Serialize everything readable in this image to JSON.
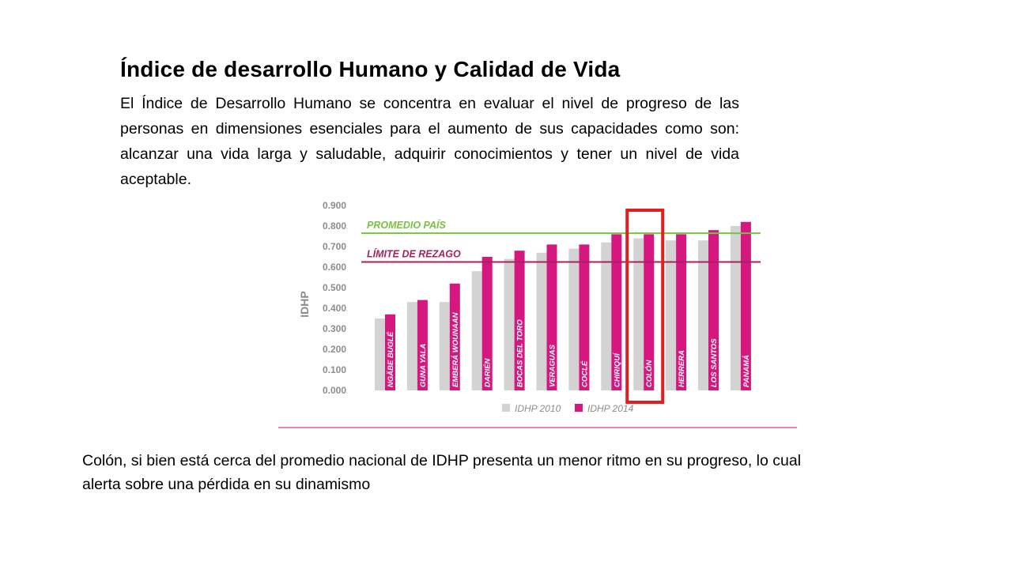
{
  "slide": {
    "title": "Índice de desarrollo Humano y Calidad de Vida",
    "intro": "El Índice de Desarrollo Humano se concentra en evaluar el nivel de progreso de las personas en dimensiones esenciales para el aumento de sus capacidades como son: alcanzar una vida larga y saludable, adquirir conocimientos y tener un nivel de vida aceptable.",
    "conclusion": "Colón, si bien está cerca del promedio nacional de IDHP presenta un menor ritmo en su progreso, lo cual alerta sobre una pérdida en su dinamismo"
  },
  "colors": {
    "idhp_2010": "#d3d3d3",
    "idhp_2014": "#d6177f",
    "promedio_line": "#7ac143",
    "rezago_line": "#a3235d",
    "highlight_box": "#e02020",
    "axis_text": "#8c8c8c"
  },
  "chart_data": {
    "type": "bar",
    "ylabel": "IDHP",
    "ylim": [
      0,
      0.9
    ],
    "yticks": [
      "0.900",
      "0.800",
      "0.700",
      "0.600",
      "0.500",
      "0.400",
      "0.300",
      "0.200",
      "0.100",
      "0.000"
    ],
    "categories": [
      "NGÄBE BUGLÉ",
      "GUNA YALA",
      "EMBERÁ WOUNAAN",
      "DARIÉN",
      "BOCAS DEL TORO",
      "VERAGUAS",
      "COCLÉ",
      "CHIRIQUÍ",
      "COLÓN",
      "HERRERA",
      "LOS SANTOS",
      "PANAMÁ"
    ],
    "series": [
      {
        "name": "IDHP 2010",
        "values": [
          0.35,
          0.43,
          0.43,
          0.58,
          0.64,
          0.67,
          0.69,
          0.72,
          0.74,
          0.73,
          0.73,
          0.8
        ]
      },
      {
        "name": "IDHP 2014",
        "values": [
          0.37,
          0.44,
          0.52,
          0.65,
          0.68,
          0.71,
          0.71,
          0.76,
          0.76,
          0.76,
          0.78,
          0.82
        ]
      }
    ],
    "reference_lines": [
      {
        "label": "PROMEDIO PAÍS",
        "value": 0.765
      },
      {
        "label": "LÍMITE DE REZAGO",
        "value": 0.625
      }
    ],
    "highlighted_category": "COLÓN",
    "legend_position": "bottom"
  }
}
